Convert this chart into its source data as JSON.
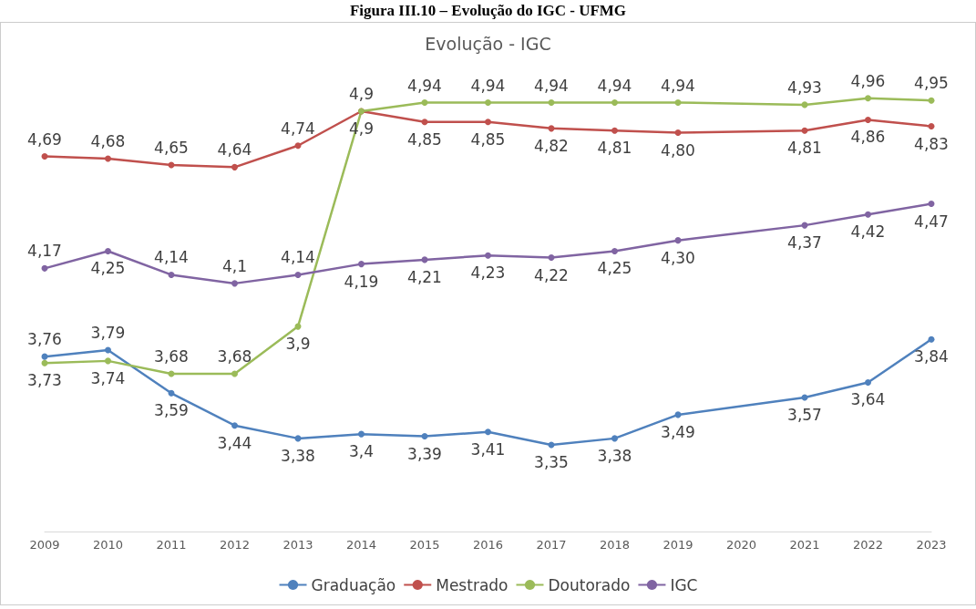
{
  "chart_data": {
    "type": "line",
    "title": "Figura III.10 – Evolução do IGC - UFMG",
    "subtitle": "Evolução - IGC",
    "categories": [
      "2009",
      "2010",
      "2011",
      "2012",
      "2013",
      "2014",
      "2015",
      "2016",
      "2017",
      "2018",
      "2019",
      "2020",
      "2021",
      "2022",
      "2023"
    ],
    "series": [
      {
        "name": "Graduação",
        "color": "#4f81bd",
        "values": [
          3.76,
          3.79,
          3.59,
          3.44,
          3.38,
          3.4,
          3.39,
          3.41,
          3.35,
          3.38,
          3.49,
          null,
          3.57,
          3.64,
          3.84
        ],
        "value_labels": [
          "3,76",
          "3,79",
          "3,59",
          "3,44",
          "3,38",
          "3,4",
          "3,39",
          "3,41",
          "3,35",
          "3,38",
          "3,49",
          null,
          "3,57",
          "3,64",
          "3,84"
        ]
      },
      {
        "name": "Mestrado",
        "color": "#c0504d",
        "values": [
          4.69,
          4.68,
          4.65,
          4.64,
          4.74,
          4.9,
          4.85,
          4.85,
          4.82,
          4.81,
          4.8,
          null,
          4.81,
          4.86,
          4.83
        ],
        "value_labels": [
          "4,69",
          "4,68",
          "4,65",
          "4,64",
          "4,74",
          "4,9",
          "4,85",
          "4,85",
          "4,82",
          "4,81",
          "4,80",
          null,
          "4,81",
          "4,86",
          "4,83"
        ]
      },
      {
        "name": "Doutorado",
        "color": "#9bbb59",
        "values": [
          3.73,
          3.74,
          3.68,
          3.68,
          3.9,
          4.9,
          4.94,
          4.94,
          4.94,
          4.94,
          4.94,
          null,
          4.93,
          4.96,
          4.95
        ],
        "value_labels": [
          "3,73",
          "3,74",
          "3,68",
          "3,68",
          "3,9",
          "4,9",
          "4,94",
          "4,94",
          "4,94",
          "4,94",
          "4,94",
          null,
          "4,93",
          "4,96",
          "4,95"
        ]
      },
      {
        "name": "IGC",
        "color": "#8064a2",
        "values": [
          4.17,
          4.25,
          4.14,
          4.1,
          4.14,
          4.19,
          4.21,
          4.23,
          4.22,
          4.25,
          4.3,
          null,
          4.37,
          4.42,
          4.47
        ],
        "value_labels": [
          "4,17",
          "4,25",
          "4,14",
          "4,1",
          "4,14",
          "4,19",
          "4,21",
          "4,23",
          "4,22",
          "4,25",
          "4,30",
          null,
          "4,37",
          "4,42",
          "4,47"
        ]
      }
    ],
    "tick_labels": "x",
    "grid": false,
    "legend": "bottom",
    "marker": "circle",
    "line_style": "solid"
  }
}
